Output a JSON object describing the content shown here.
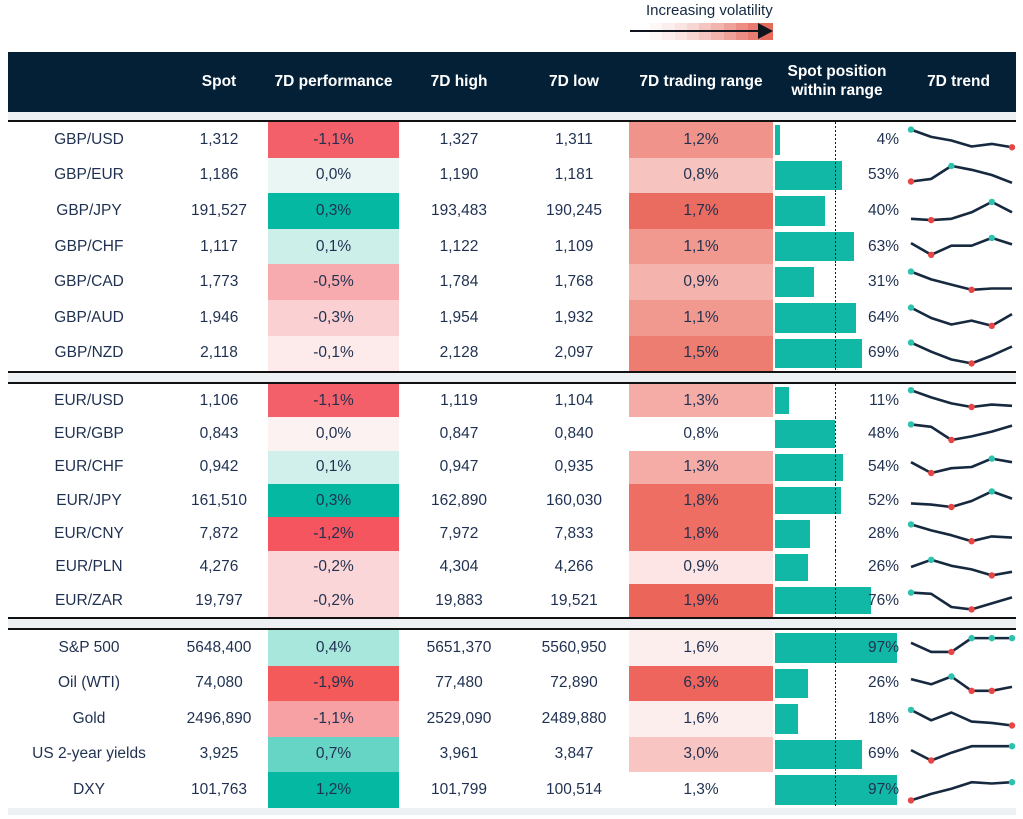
{
  "legend": {
    "title": "Increasing volatility",
    "gradient_steps": [
      "#fdf7f6",
      "#fceeec",
      "#fae3e0",
      "#f8d7d3",
      "#f5c6c1",
      "#f2b5ae",
      "#efa29a",
      "#ec8e84",
      "#e97c70",
      "#e76a5d"
    ]
  },
  "columns": [
    "",
    "Spot",
    "7D performance",
    "7D high",
    "7D low",
    "7D trading range",
    "Spot position within range",
    "7D trend"
  ],
  "colors": {
    "header_bg": "#042037",
    "body_text": "#1f3050",
    "bar_fill": "#12b8a6",
    "spark_line": "#16293f",
    "dot_max": "#2cc2ae",
    "dot_min": "#e84545",
    "divider_band": "#eef1f4"
  },
  "chart_data": {
    "type": "table",
    "sections": [
      {
        "rows": [
          {
            "name": "GBP/USD",
            "spot": "1,312",
            "perf": "-1,1%",
            "perf_bg": "#f46069",
            "high": "1,327",
            "low": "1,311",
            "range": "1,2%",
            "range_bg": "#f0938b",
            "position_pct": 4,
            "position": "4%",
            "spark": {
              "v": [
                90,
                62,
                48,
                25,
                35,
                22
              ],
              "max": [
                0
              ],
              "min": [
                5
              ]
            }
          },
          {
            "name": "GBP/EUR",
            "spot": "1,186",
            "perf": "0,0%",
            "perf_bg": "#e9f6f4",
            "high": "1,190",
            "low": "1,181",
            "range": "0,8%",
            "range_bg": "#f6c3bf",
            "position_pct": 53,
            "position": "53%",
            "spark": {
              "v": [
                25,
                35,
                85,
                70,
                50,
                20
              ],
              "max": [
                2
              ],
              "min": [
                0
              ]
            }
          },
          {
            "name": "GBP/JPY",
            "spot": "191,527",
            "perf": "0,3%",
            "perf_bg": "#04b8a2",
            "high": "193,483",
            "low": "190,245",
            "range": "1,7%",
            "range_bg": "#ea6b5f",
            "position_pct": 40,
            "position": "40%",
            "spark": {
              "v": [
                20,
                15,
                20,
                45,
                85,
                45
              ],
              "max": [
                4
              ],
              "min": [
                1
              ]
            }
          },
          {
            "name": "GBP/CHF",
            "spot": "1,117",
            "perf": "0,1%",
            "perf_bg": "#ccefe9",
            "high": "1,122",
            "low": "1,109",
            "range": "1,1%",
            "range_bg": "#f1998f",
            "position_pct": 63,
            "position": "63%",
            "spark": {
              "v": [
                65,
                20,
                55,
                55,
                85,
                60
              ],
              "max": [
                4
              ],
              "min": [
                1
              ]
            }
          },
          {
            "name": "GBP/CAD",
            "spot": "1,773",
            "perf": "-0,5%",
            "perf_bg": "#f7abae",
            "high": "1,784",
            "low": "1,768",
            "range": "0,9%",
            "range_bg": "#f4b3ac",
            "position_pct": 31,
            "position": "31%",
            "spark": {
              "v": [
                90,
                60,
                40,
                20,
                25,
                25
              ],
              "max": [
                0
              ],
              "min": [
                3
              ]
            }
          },
          {
            "name": "GBP/AUD",
            "spot": "1,946",
            "perf": "-0,3%",
            "perf_bg": "#fbd0d2",
            "high": "1,954",
            "low": "1,932",
            "range": "1,1%",
            "range_bg": "#f1998f",
            "position_pct": 64,
            "position": "64%",
            "spark": {
              "v": [
                90,
                50,
                25,
                40,
                20,
                65
              ],
              "max": [
                0
              ],
              "min": [
                4
              ]
            }
          },
          {
            "name": "GBP/NZD",
            "spot": "2,118",
            "perf": "-0,1%",
            "perf_bg": "#fdeaeb",
            "high": "2,128",
            "low": "2,097",
            "range": "1,5%",
            "range_bg": "#ed7d71",
            "position_pct": 69,
            "position": "69%",
            "spark": {
              "v": [
                90,
                55,
                25,
                10,
                40,
                75
              ],
              "max": [
                0
              ],
              "min": [
                3
              ]
            }
          }
        ]
      },
      {
        "rows": [
          {
            "name": "EUR/USD",
            "spot": "1,106",
            "perf": "-1,1%",
            "perf_bg": "#f46069",
            "high": "1,119",
            "low": "1,104",
            "range": "1,3%",
            "range_bg": "#f5aba6",
            "position_pct": 11,
            "position": "11%",
            "spark": {
              "v": [
                95,
                65,
                40,
                25,
                35,
                30
              ],
              "max": [
                0
              ],
              "min": [
                3
              ]
            }
          },
          {
            "name": "EUR/GBP",
            "spot": "0,843",
            "perf": "0,0%",
            "perf_bg": "#fdf2f2",
            "high": "0,847",
            "low": "0,840",
            "range": "0,8%",
            "range_bg": "#ffffff",
            "position_pct": 48,
            "position": "48%",
            "spark": {
              "v": [
                90,
                80,
                25,
                40,
                60,
                85
              ],
              "max": [
                0
              ],
              "min": [
                2
              ]
            }
          },
          {
            "name": "EUR/CHF",
            "spot": "0,942",
            "perf": "0,1%",
            "perf_bg": "#d2f0eb",
            "high": "0,947",
            "low": "0,935",
            "range": "1,3%",
            "range_bg": "#f5aba6",
            "position_pct": 54,
            "position": "54%",
            "spark": {
              "v": [
                70,
                25,
                45,
                50,
                85,
                70
              ],
              "max": [
                4
              ],
              "min": [
                1
              ]
            }
          },
          {
            "name": "EUR/JPY",
            "spot": "161,510",
            "perf": "0,3%",
            "perf_bg": "#04b8a2",
            "high": "162,890",
            "low": "160,030",
            "range": "1,8%",
            "range_bg": "#ee6e64",
            "position_pct": 52,
            "position": "52%",
            "spark": {
              "v": [
                40,
                35,
                25,
                50,
                90,
                60
              ],
              "max": [
                4
              ],
              "min": [
                2
              ]
            }
          },
          {
            "name": "EUR/CNY",
            "spot": "7,872",
            "perf": "-1,2%",
            "perf_bg": "#f4555f",
            "high": "7,972",
            "low": "7,833",
            "range": "1,8%",
            "range_bg": "#ee6e64",
            "position_pct": 28,
            "position": "28%",
            "spark": {
              "v": [
                90,
                65,
                45,
                20,
                40,
                35
              ],
              "max": [
                0
              ],
              "min": [
                3
              ]
            }
          },
          {
            "name": "EUR/PLN",
            "spot": "4,276",
            "perf": "-0,2%",
            "perf_bg": "#fbd6d8",
            "high": "4,304",
            "low": "4,266",
            "range": "0,9%",
            "range_bg": "#fce5e4",
            "position_pct": 26,
            "position": "26%",
            "spark": {
              "v": [
                50,
                80,
                55,
                40,
                15,
                30
              ],
              "max": [
                1
              ],
              "min": [
                4
              ]
            }
          },
          {
            "name": "EUR/ZAR",
            "spot": "19,797",
            "perf": "-0,2%",
            "perf_bg": "#fbd6d8",
            "high": "19,883",
            "low": "19,521",
            "range": "1,9%",
            "range_bg": "#ec655a",
            "position_pct": 76,
            "position": "76%",
            "spark": {
              "v": [
                85,
                80,
                25,
                15,
                40,
                65
              ],
              "max": [
                0
              ],
              "min": [
                3
              ]
            }
          }
        ]
      },
      {
        "rows": [
          {
            "name": "S&P 500",
            "spot": "5648,400",
            "perf": "0,4%",
            "perf_bg": "#a7e7dc",
            "high": "5651,370",
            "low": "5560,950",
            "range": "1,6%",
            "range_bg": "#fdeeee",
            "position_pct": 97,
            "position": "97%",
            "spark": {
              "v": [
                70,
                35,
                35,
                88,
                88,
                88
              ],
              "max": [
                3,
                4,
                5
              ],
              "min": [
                2
              ]
            }
          },
          {
            "name": "Oil (WTI)",
            "spot": "74,080",
            "perf": "-1,9%",
            "perf_bg": "#f45a59",
            "high": "77,480",
            "low": "72,890",
            "range": "6,3%",
            "range_bg": "#ee655e",
            "position_pct": 26,
            "position": "26%",
            "spark": {
              "v": [
                65,
                45,
                75,
                20,
                20,
                35
              ],
              "max": [
                2
              ],
              "min": [
                3,
                4
              ]
            }
          },
          {
            "name": "Gold",
            "spot": "2496,890",
            "perf": "-1,1%",
            "perf_bg": "#f7a1a4",
            "high": "2529,090",
            "low": "2489,880",
            "range": "1,6%",
            "range_bg": "#fdeeee",
            "position_pct": 18,
            "position": "18%",
            "spark": {
              "v": [
                85,
                45,
                75,
                40,
                35,
                25
              ],
              "max": [
                0
              ],
              "min": [
                5
              ]
            }
          },
          {
            "name": "US 2-year yields",
            "spot": "3,925",
            "perf": "0,7%",
            "perf_bg": "#66d5c5",
            "high": "3,961",
            "low": "3,847",
            "range": "3,0%",
            "range_bg": "#f8c5c3",
            "position_pct": 69,
            "position": "69%",
            "spark": {
              "v": [
                65,
                25,
                55,
                80,
                80,
                80
              ],
              "max": [
                5
              ],
              "min": [
                1
              ]
            }
          },
          {
            "name": "DXY",
            "spot": "101,763",
            "perf": "1,2%",
            "perf_bg": "#04b8a2",
            "high": "101,799",
            "low": "100,514",
            "range": "1,3%",
            "range_bg": "#ffffff",
            "position_pct": 97,
            "position": "97%",
            "spark": {
              "v": [
                10,
                35,
                55,
                80,
                75,
                80
              ],
              "max": [
                5
              ],
              "min": [
                0
              ]
            }
          }
        ]
      }
    ]
  }
}
